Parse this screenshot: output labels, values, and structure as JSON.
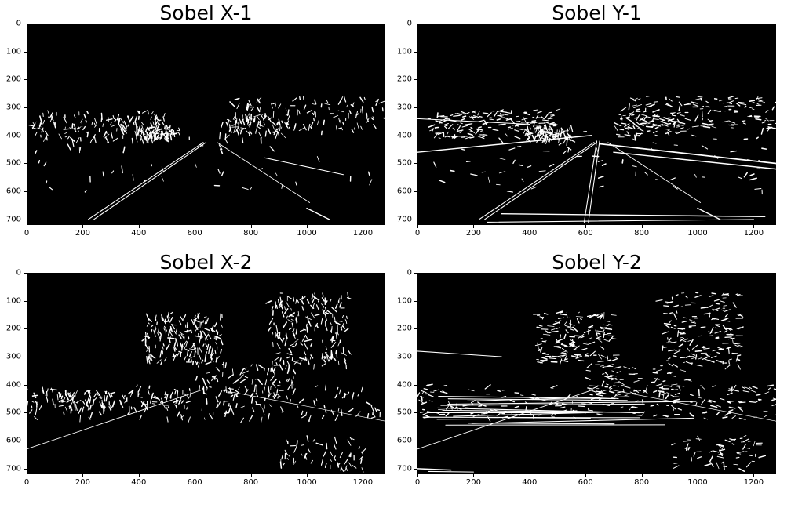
{
  "figure": {
    "panels": [
      {
        "id": "sobel-x-1",
        "title": "Sobel X-1",
        "kind": "x",
        "road": 1,
        "x_ticks": [
          "0",
          "200",
          "400",
          "600",
          "800",
          "1000",
          "1200"
        ],
        "y_ticks": [
          "0",
          "100",
          "200",
          "300",
          "400",
          "500",
          "600",
          "700"
        ]
      },
      {
        "id": "sobel-y-1",
        "title": "Sobel Y-1",
        "kind": "y",
        "road": 1,
        "x_ticks": [
          "0",
          "200",
          "400",
          "600",
          "800",
          "1000",
          "1200"
        ],
        "y_ticks": [
          "0",
          "100",
          "200",
          "300",
          "400",
          "500",
          "600",
          "700"
        ]
      },
      {
        "id": "sobel-x-2",
        "title": "Sobel X-2",
        "kind": "x",
        "road": 2,
        "x_ticks": [
          "0",
          "200",
          "400",
          "600",
          "800",
          "1000",
          "1200"
        ],
        "y_ticks": [
          "0",
          "100",
          "200",
          "300",
          "400",
          "500",
          "600",
          "700"
        ]
      },
      {
        "id": "sobel-y-2",
        "title": "Sobel Y-2",
        "kind": "y",
        "road": 2,
        "x_ticks": [
          "0",
          "200",
          "400",
          "600",
          "800",
          "1000",
          "1200"
        ],
        "y_ticks": [
          "0",
          "100",
          "200",
          "300",
          "400",
          "500",
          "600",
          "700"
        ]
      }
    ],
    "image_width": 1280,
    "image_height": 720,
    "colors": {
      "background": "#000000",
      "edges": "#ffffff"
    }
  }
}
